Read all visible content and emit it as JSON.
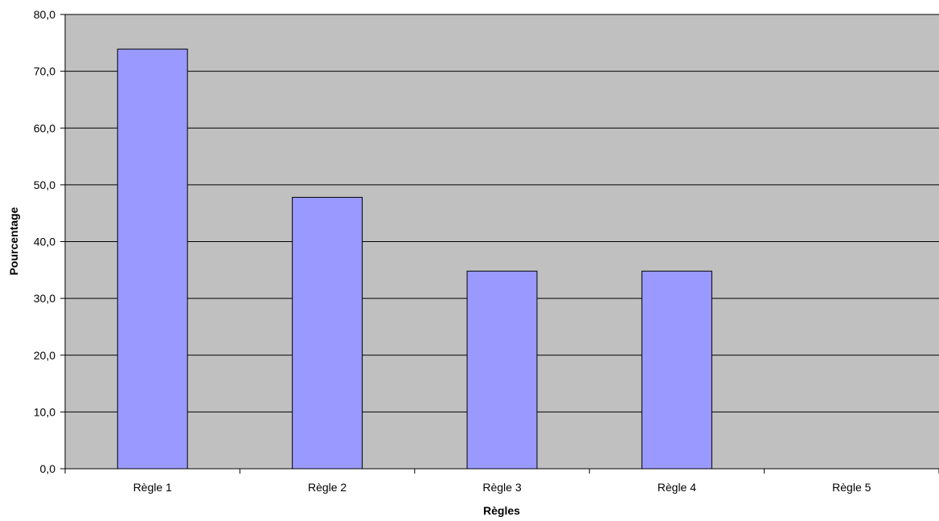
{
  "chart_data": {
    "type": "bar",
    "title": "",
    "xlabel": "Règles",
    "ylabel": "Pourcentage",
    "categories": [
      "Règle 1",
      "Règle 2",
      "Règle 3",
      "Règle 4",
      "Règle 5"
    ],
    "series": [
      {
        "values": [
          73.9,
          47.8,
          34.8,
          34.8,
          0.0
        ]
      }
    ],
    "ylim": [
      0,
      80
    ],
    "ytick_step": 10,
    "ytick_labels": [
      "0,0",
      "10,0",
      "20,0",
      "30,0",
      "40,0",
      "50,0",
      "60,0",
      "70,0",
      "80,0"
    ],
    "grid": "horizontal",
    "legend": "none",
    "colors": {
      "plot_background": "#c0c0c0",
      "bar_fill": "#9999ff",
      "bar_stroke": "#000000",
      "gridline": "#000000"
    }
  }
}
